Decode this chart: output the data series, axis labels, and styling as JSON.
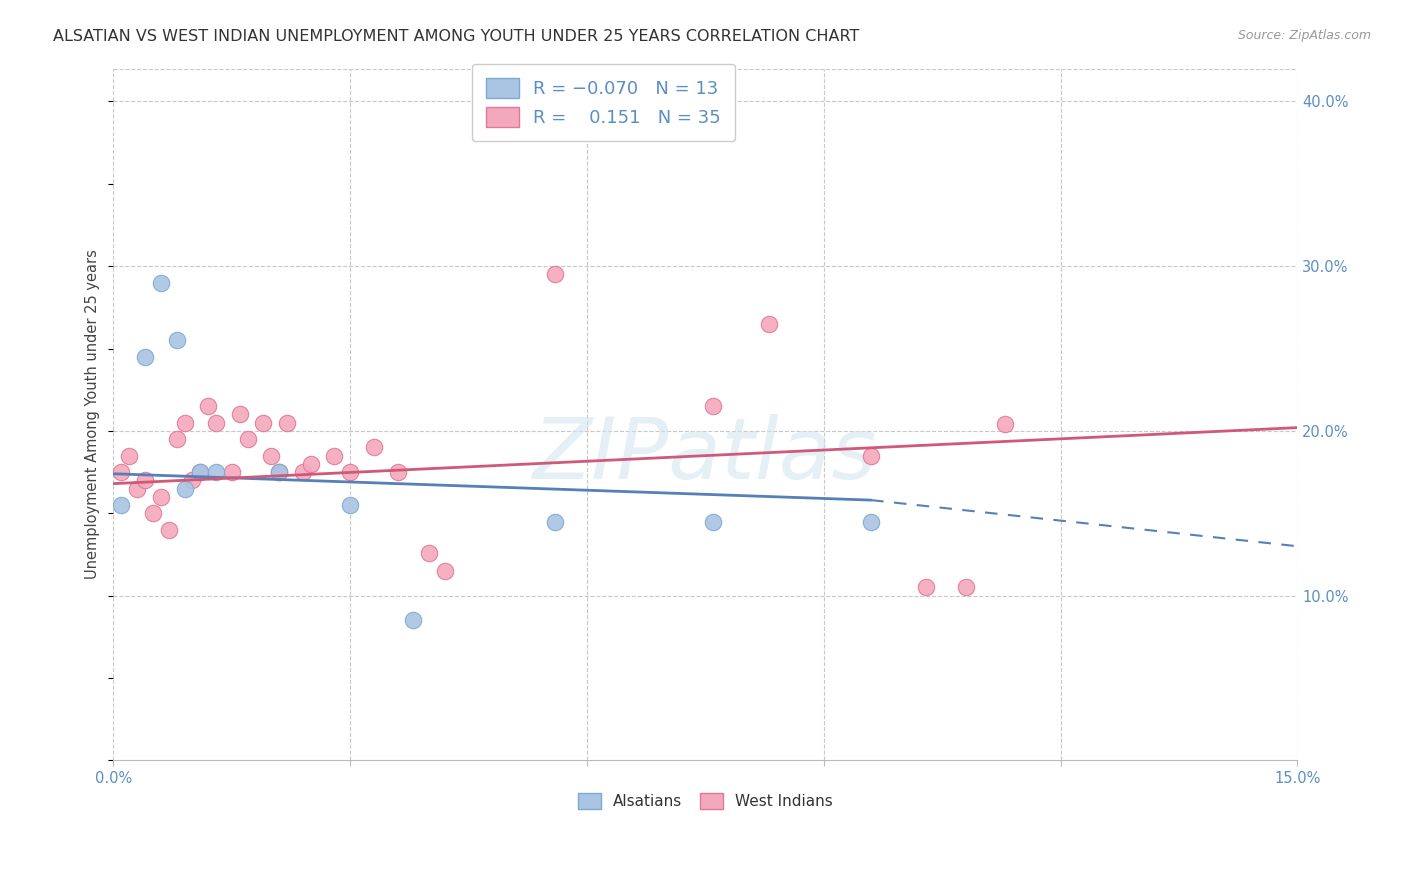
{
  "title": "ALSATIAN VS WEST INDIAN UNEMPLOYMENT AMONG YOUTH UNDER 25 YEARS CORRELATION CHART",
  "source": "Source: ZipAtlas.com",
  "ylabel": "Unemployment Among Youth under 25 years",
  "xlim": [
    0.0,
    0.15
  ],
  "ylim": [
    0.0,
    0.42
  ],
  "xticks": [
    0.0,
    0.03,
    0.06,
    0.09,
    0.12,
    0.15
  ],
  "yticks": [
    0.1,
    0.2,
    0.3,
    0.4
  ],
  "background_color": "#ffffff",
  "grid_color": "#c8c8c8",
  "watermark": "ZIPatlas",
  "alsatians": {
    "color": "#aac4e4",
    "edge_color": "#7aaad0",
    "line_color": "#5580b8",
    "R": -0.07,
    "N": 13,
    "label": "Alsatians",
    "x": [
      0.001,
      0.004,
      0.006,
      0.008,
      0.009,
      0.011,
      0.013,
      0.021,
      0.03,
      0.038,
      0.056,
      0.076,
      0.096
    ],
    "y": [
      0.155,
      0.245,
      0.29,
      0.255,
      0.165,
      0.175,
      0.175,
      0.175,
      0.155,
      0.085,
      0.145,
      0.145,
      0.145
    ],
    "trend_x0": 0.0,
    "trend_y0": 0.174,
    "trend_x1": 0.096,
    "trend_y1": 0.158,
    "trend_dash_x1": 0.15,
    "trend_dash_y1": 0.13
  },
  "west_indians": {
    "color": "#f4a8bc",
    "edge_color": "#e07898",
    "line_color": "#d05878",
    "R": 0.151,
    "N": 35,
    "label": "West Indians",
    "x": [
      0.001,
      0.002,
      0.003,
      0.004,
      0.005,
      0.006,
      0.007,
      0.008,
      0.009,
      0.01,
      0.011,
      0.012,
      0.013,
      0.015,
      0.016,
      0.017,
      0.019,
      0.02,
      0.021,
      0.022,
      0.024,
      0.025,
      0.028,
      0.03,
      0.033,
      0.036,
      0.04,
      0.042,
      0.056,
      0.076,
      0.083,
      0.096,
      0.103,
      0.108,
      0.113
    ],
    "y": [
      0.175,
      0.185,
      0.165,
      0.17,
      0.15,
      0.16,
      0.14,
      0.195,
      0.205,
      0.17,
      0.175,
      0.215,
      0.205,
      0.175,
      0.21,
      0.195,
      0.205,
      0.185,
      0.175,
      0.205,
      0.175,
      0.18,
      0.185,
      0.175,
      0.19,
      0.175,
      0.126,
      0.115,
      0.295,
      0.215,
      0.265,
      0.185,
      0.105,
      0.105,
      0.204
    ],
    "trend_x0": 0.0,
    "trend_y0": 0.168,
    "trend_x1": 0.15,
    "trend_y1": 0.202
  },
  "marker_size": 140,
  "title_fontsize": 11.5,
  "axis_label_fontsize": 10.5,
  "tick_fontsize": 10.5,
  "legend_fontsize": 13
}
